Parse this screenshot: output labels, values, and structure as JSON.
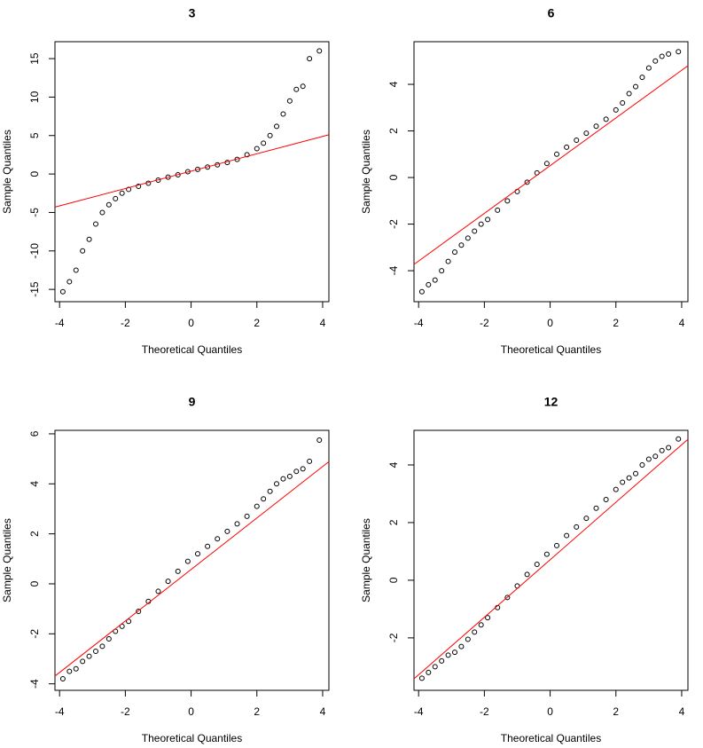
{
  "chart_data": [
    {
      "type": "scatter",
      "title": "3",
      "x_label": "Theoretical Quantiles",
      "y_label": "Sample Quantiles",
      "color": "#000000",
      "x": [
        -3.9,
        -3.7,
        -3.5,
        -3.3,
        -3.1,
        -2.9,
        -2.7,
        -2.5,
        -2.3,
        -2.1,
        -1.9,
        -1.6,
        -1.3,
        -1.0,
        -0.7,
        -0.4,
        -0.1,
        0.2,
        0.5,
        0.8,
        1.1,
        1.4,
        1.7,
        2.0,
        2.2,
        2.4,
        2.6,
        2.8,
        3.0,
        3.2,
        3.4,
        3.6,
        3.9
      ],
      "values": [
        -15.3,
        -14.0,
        -12.5,
        -10,
        -8.5,
        -6.5,
        -5,
        -4,
        -3.2,
        -2.5,
        -2.0,
        -1.6,
        -1.2,
        -0.8,
        -0.4,
        -0.1,
        0.3,
        0.6,
        0.9,
        1.2,
        1.5,
        1.9,
        2.5,
        3.3,
        4.0,
        5.0,
        6.2,
        7.8,
        9.5,
        11,
        11.4,
        15.0,
        16.0
      ],
      "reference_line": {
        "color": "#ff0000",
        "x": [
          -4.14,
          4.19
        ],
        "y": [
          -4.3,
          5.1
        ]
      },
      "xlim": [
        -4.14,
        4.19
      ],
      "xticks": [
        -4,
        -2,
        0,
        2,
        4
      ],
      "ylim": [
        -16.6,
        17.2
      ],
      "yticks": [
        -15,
        -10,
        -5,
        0,
        5,
        10,
        15
      ]
    },
    {
      "type": "scatter",
      "title": "6",
      "x_label": "Theoretical Quantiles",
      "y_label": "Sample Quantiles",
      "color": "#000000",
      "x": [
        -3.9,
        -3.7,
        -3.5,
        -3.3,
        -3.1,
        -2.9,
        -2.7,
        -2.5,
        -2.3,
        -2.1,
        -1.9,
        -1.6,
        -1.3,
        -1.0,
        -0.7,
        -0.4,
        -0.1,
        0.2,
        0.5,
        0.8,
        1.1,
        1.4,
        1.7,
        2.0,
        2.2,
        2.4,
        2.6,
        2.8,
        3.0,
        3.2,
        3.4,
        3.6,
        3.9
      ],
      "values": [
        -4.9,
        -4.6,
        -4.4,
        -4.0,
        -3.6,
        -3.2,
        -2.9,
        -2.6,
        -2.3,
        -2.0,
        -1.8,
        -1.4,
        -1.0,
        -0.6,
        -0.2,
        0.2,
        0.6,
        1.0,
        1.3,
        1.6,
        1.9,
        2.2,
        2.5,
        2.9,
        3.2,
        3.6,
        3.9,
        4.3,
        4.7,
        5.0,
        5.2,
        5.3,
        5.4
      ],
      "reference_line": {
        "color": "#ff0000",
        "x": [
          -4.14,
          4.19
        ],
        "y": [
          -3.73,
          4.8
        ]
      },
      "xlim": [
        -4.14,
        4.19
      ],
      "xticks": [
        -4,
        -2,
        0,
        2,
        4
      ],
      "ylim": [
        -5.33,
        5.83
      ],
      "yticks": [
        -4,
        -2,
        0,
        2,
        4
      ]
    },
    {
      "type": "scatter",
      "title": "9",
      "x_label": "Theoretical Quantiles",
      "y_label": "Sample Quantiles",
      "color": "#000000",
      "x": [
        -3.9,
        -3.7,
        -3.5,
        -3.3,
        -3.1,
        -2.9,
        -2.7,
        -2.5,
        -2.3,
        -2.1,
        -1.9,
        -1.6,
        -1.3,
        -1.0,
        -0.7,
        -0.4,
        -0.1,
        0.2,
        0.5,
        0.8,
        1.1,
        1.4,
        1.7,
        2.0,
        2.2,
        2.4,
        2.6,
        2.8,
        3.0,
        3.2,
        3.4,
        3.6,
        3.9
      ],
      "values": [
        -3.8,
        -3.5,
        -3.4,
        -3.1,
        -2.9,
        -2.7,
        -2.5,
        -2.2,
        -1.9,
        -1.7,
        -1.5,
        -1.1,
        -0.7,
        -0.3,
        0.1,
        0.5,
        0.9,
        1.2,
        1.5,
        1.8,
        2.1,
        2.4,
        2.7,
        3.1,
        3.4,
        3.7,
        4.0,
        4.2,
        4.3,
        4.5,
        4.6,
        4.9,
        5.75
      ],
      "reference_line": {
        "color": "#ff0000",
        "x": [
          -4.14,
          4.19
        ],
        "y": [
          -3.69,
          4.89
        ]
      },
      "xlim": [
        -4.14,
        4.19
      ],
      "xticks": [
        -4,
        -2,
        0,
        2,
        4
      ],
      "ylim": [
        -4.26,
        6.14
      ],
      "yticks": [
        -4,
        -2,
        0,
        2,
        4,
        6
      ]
    },
    {
      "type": "scatter",
      "title": "12",
      "x_label": "Theoretical Quantiles",
      "y_label": "Sample Quantiles",
      "color": "#000000",
      "x": [
        -3.9,
        -3.7,
        -3.5,
        -3.3,
        -3.1,
        -2.9,
        -2.7,
        -2.5,
        -2.3,
        -2.1,
        -1.9,
        -1.6,
        -1.3,
        -1.0,
        -0.7,
        -0.4,
        -0.1,
        0.2,
        0.5,
        0.8,
        1.1,
        1.4,
        1.7,
        2.0,
        2.2,
        2.4,
        2.6,
        2.8,
        3.0,
        3.2,
        3.4,
        3.6,
        3.9
      ],
      "values": [
        -3.4,
        -3.2,
        -3.0,
        -2.8,
        -2.6,
        -2.5,
        -2.3,
        -2.05,
        -1.8,
        -1.55,
        -1.3,
        -0.95,
        -0.6,
        -0.2,
        0.2,
        0.55,
        0.9,
        1.2,
        1.55,
        1.85,
        2.15,
        2.5,
        2.8,
        3.15,
        3.4,
        3.55,
        3.7,
        4.0,
        4.2,
        4.3,
        4.5,
        4.6,
        4.9
      ],
      "reference_line": {
        "color": "#ff0000",
        "x": [
          -4.14,
          4.19
        ],
        "y": [
          -3.42,
          4.89
        ]
      },
      "xlim": [
        -4.14,
        4.19
      ],
      "xticks": [
        -4,
        -2,
        0,
        2,
        4
      ],
      "ylim": [
        -3.82,
        5.2
      ],
      "yticks": [
        -2,
        0,
        2,
        4
      ]
    }
  ]
}
